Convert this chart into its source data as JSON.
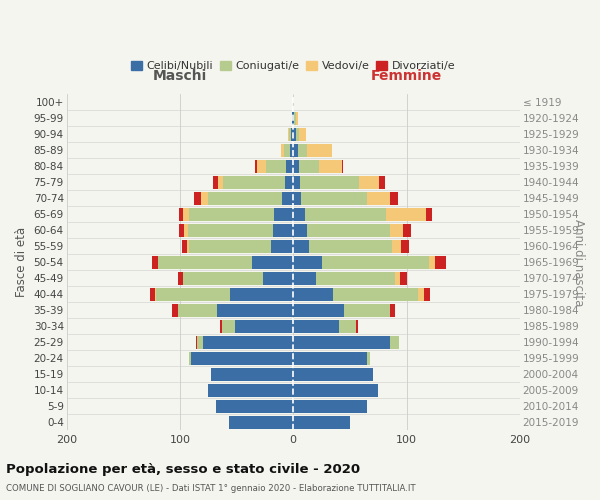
{
  "age_groups": [
    "0-4",
    "5-9",
    "10-14",
    "15-19",
    "20-24",
    "25-29",
    "30-34",
    "35-39",
    "40-44",
    "45-49",
    "50-54",
    "55-59",
    "60-64",
    "65-69",
    "70-74",
    "75-79",
    "80-84",
    "85-89",
    "90-94",
    "95-99",
    "100+"
  ],
  "birth_years": [
    "2015-2019",
    "2010-2014",
    "2005-2009",
    "2000-2004",
    "1995-1999",
    "1990-1994",
    "1985-1989",
    "1980-1984",
    "1975-1979",
    "1970-1974",
    "1965-1969",
    "1960-1964",
    "1955-1959",
    "1950-1954",
    "1945-1949",
    "1940-1944",
    "1935-1939",
    "1930-1934",
    "1925-1929",
    "1920-1924",
    "≤ 1919"
  ],
  "maschi": {
    "celibi": [
      57,
      68,
      75,
      73,
      90,
      80,
      51,
      67,
      56,
      27,
      36,
      20,
      18,
      17,
      10,
      7,
      6,
      3,
      2,
      1,
      0
    ],
    "coniugati": [
      0,
      0,
      0,
      0,
      2,
      5,
      12,
      35,
      65,
      70,
      83,
      72,
      75,
      75,
      65,
      55,
      18,
      5,
      2,
      0,
      0
    ],
    "vedovi": [
      0,
      0,
      0,
      0,
      0,
      0,
      0,
      0,
      1,
      0,
      0,
      2,
      3,
      5,
      6,
      4,
      8,
      3,
      1,
      0,
      0
    ],
    "divorziati": [
      0,
      0,
      0,
      0,
      0,
      1,
      2,
      5,
      4,
      5,
      6,
      4,
      5,
      4,
      7,
      5,
      2,
      0,
      0,
      0,
      0
    ]
  },
  "femmine": {
    "nubili": [
      50,
      65,
      75,
      70,
      65,
      85,
      40,
      45,
      35,
      20,
      25,
      14,
      12,
      10,
      7,
      6,
      5,
      4,
      2,
      1,
      0
    ],
    "coniugate": [
      0,
      0,
      0,
      0,
      3,
      8,
      15,
      40,
      75,
      70,
      95,
      73,
      73,
      72,
      58,
      52,
      18,
      8,
      3,
      1,
      0
    ],
    "vedove": [
      0,
      0,
      0,
      0,
      0,
      0,
      0,
      0,
      5,
      4,
      5,
      8,
      12,
      35,
      20,
      18,
      20,
      22,
      6,
      2,
      0
    ],
    "divorziate": [
      0,
      0,
      0,
      0,
      0,
      0,
      2,
      5,
      6,
      6,
      10,
      7,
      7,
      5,
      7,
      5,
      1,
      0,
      0,
      0,
      0
    ]
  },
  "colors": {
    "celibi_nubili": "#3a6ea5",
    "coniugati": "#b5cc8e",
    "vedovi": "#f5c878",
    "divorziati": "#cc2222"
  },
  "xlim": 200,
  "title": "Popolazione per età, sesso e stato civile - 2020",
  "subtitle": "COMUNE DI SOGLIANO CAVOUR (LE) - Dati ISTAT 1° gennaio 2020 - Elaborazione TUTTITALIA.IT",
  "ylabel_left": "Fasce di età",
  "ylabel_right": "Anni di nascita",
  "label_maschi": "Maschi",
  "label_femmine": "Femmine",
  "legend": [
    "Celibi/Nubili",
    "Coniugati/e",
    "Vedovi/e",
    "Divorziati/e"
  ],
  "bg_color": "#f5f5f0",
  "bar_color_bg": "#ffffff"
}
